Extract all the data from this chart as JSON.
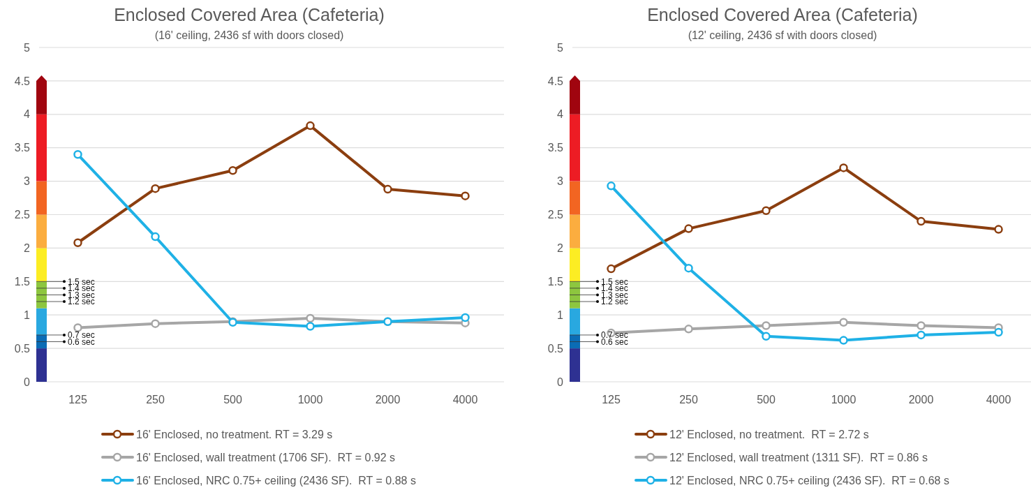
{
  "chart_data": [
    {
      "type": "line",
      "title": "Enclosed Covered Area (Cafeteria)",
      "subtitle": "(16' ceiling, 2436 sf with doors closed)",
      "categories": [
        "125",
        "250",
        "500",
        "1000",
        "2000",
        "4000"
      ],
      "series": [
        {
          "name": "16' Enclosed, no treatment. RT = 3.29 s",
          "color": "#8b3e0f",
          "values": [
            2.08,
            2.89,
            3.16,
            3.83,
            2.88,
            2.78
          ]
        },
        {
          "name": "16' Enclosed, wall treatment (1706 SF).  RT = 0.92 s",
          "color": "#a6a6a6",
          "values": [
            0.81,
            0.87,
            0.9,
            0.95,
            0.9,
            0.88
          ]
        },
        {
          "name": "16' Enclosed, NRC 0.75+ ceiling (2436 SF).  RT = 0.88 s",
          "color": "#1fb1e6",
          "values": [
            3.4,
            2.17,
            0.89,
            0.83,
            0.9,
            0.96
          ]
        }
      ],
      "ylim": [
        0,
        5
      ],
      "yticks": [
        0,
        0.5,
        1,
        1.5,
        2,
        2.5,
        3,
        3.5,
        4,
        4.5,
        5
      ],
      "grid": "y",
      "legend": "bottom",
      "marker": "circle",
      "line_style": "solid",
      "annotations": [
        "1.5 sec",
        "1.4 sec",
        "1.3 sec",
        "1.2 sec",
        "0.7 sec",
        "0.6 sec"
      ]
    },
    {
      "type": "line",
      "title": "Enclosed Covered Area (Cafeteria)",
      "subtitle": "(12' ceiling, 2436 sf with doors closed)",
      "categories": [
        "125",
        "250",
        "500",
        "1000",
        "2000",
        "4000"
      ],
      "series": [
        {
          "name": "12' Enclosed, no treatment.  RT = 2.72 s",
          "color": "#8b3e0f",
          "values": [
            1.69,
            2.29,
            2.56,
            3.2,
            2.4,
            2.28
          ]
        },
        {
          "name": "12' Enclosed, wall treatment (1311 SF).  RT = 0.86 s",
          "color": "#a6a6a6",
          "values": [
            0.73,
            0.79,
            0.84,
            0.89,
            0.84,
            0.81
          ]
        },
        {
          "name": "12' Enclosed, NRC 0.75+ ceiling (2436 SF).  RT = 0.68 s",
          "color": "#1fb1e6",
          "values": [
            2.93,
            1.7,
            0.68,
            0.62,
            0.7,
            0.74
          ]
        }
      ],
      "ylim": [
        0,
        5
      ],
      "yticks": [
        0,
        0.5,
        1,
        1.5,
        2,
        2.5,
        3,
        3.5,
        4,
        4.5,
        5
      ],
      "grid": "y",
      "legend": "bottom",
      "marker": "circle",
      "line_style": "solid",
      "annotations": [
        "1.5 sec",
        "1.4 sec",
        "1.3 sec",
        "1.2 sec",
        "0.7 sec",
        "0.6 sec"
      ]
    }
  ]
}
